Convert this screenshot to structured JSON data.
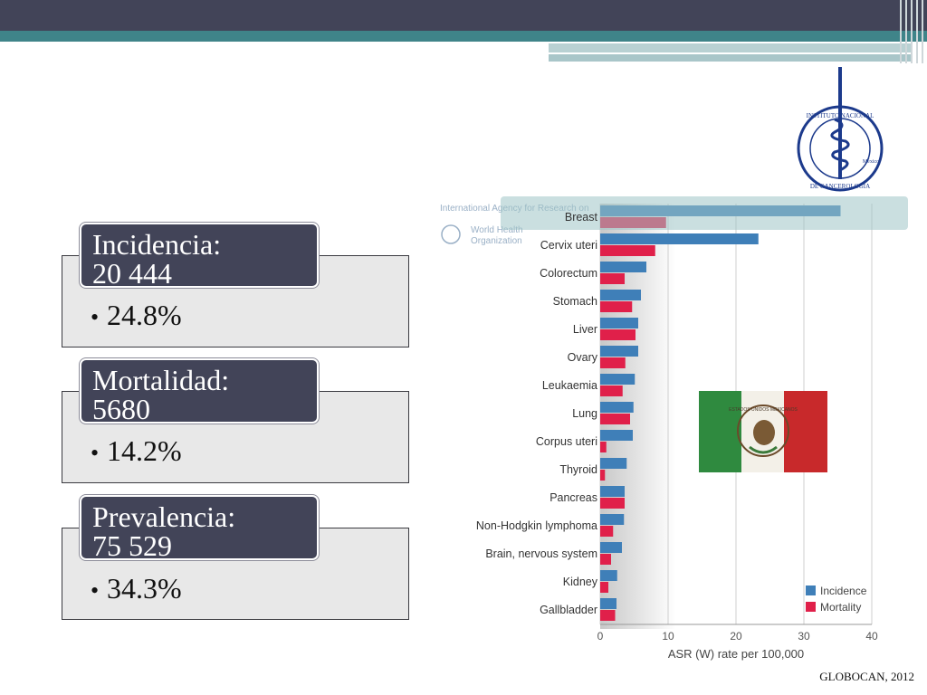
{
  "stats": [
    {
      "label": "Incidencia:",
      "value": "20 444",
      "bullet": "24.8%"
    },
    {
      "label": "Mortalidad:",
      "value": "5680",
      "bullet": "14.2%"
    },
    {
      "label": "Prevalencia:",
      "value": "75 529",
      "bullet": "34.3%"
    }
  ],
  "logo": {
    "text_top": "INSTITUTO NACIONAL",
    "text_bottom": "DE CANCEROLOGIA",
    "text_country": "México"
  },
  "flag": {
    "seal_text": "ESTADOS UNIDOS MEXICANOS"
  },
  "watermark": {
    "agency": "International Agency for Research on",
    "who_line1": "World Health",
    "who_line2": "Organization"
  },
  "chart_data": {
    "type": "bar",
    "orientation": "horizontal",
    "categories": [
      "Breast",
      "Cervix uteri",
      "Colorectum",
      "Stomach",
      "Liver",
      "Ovary",
      "Leukaemia",
      "Lung",
      "Corpus uteri",
      "Thyroid",
      "Pancreas",
      "Non-Hodgkin lymphoma",
      "Brain, nervous system",
      "Kidney",
      "Gallbladder"
    ],
    "series": [
      {
        "name": "Incidence",
        "color": "#3f7fb8",
        "values": [
          35.4,
          23.3,
          6.8,
          6.0,
          5.6,
          5.6,
          5.1,
          4.9,
          4.8,
          3.9,
          3.6,
          3.5,
          3.2,
          2.5,
          2.4
        ]
      },
      {
        "name": "Mortality",
        "color": "#e0204a",
        "values": [
          9.7,
          8.1,
          3.6,
          4.7,
          5.2,
          3.7,
          3.3,
          4.4,
          0.9,
          0.7,
          3.6,
          1.9,
          1.6,
          1.2,
          2.2
        ]
      }
    ],
    "xlabel": "ASR (W) rate per 100,000",
    "xlim": [
      0,
      40
    ],
    "xticks": [
      0,
      10,
      20,
      30,
      40
    ],
    "grid": true,
    "legend_position": "bottom-right",
    "highlighted_category": "Breast"
  },
  "source": "GLOBOCAN, 2012"
}
